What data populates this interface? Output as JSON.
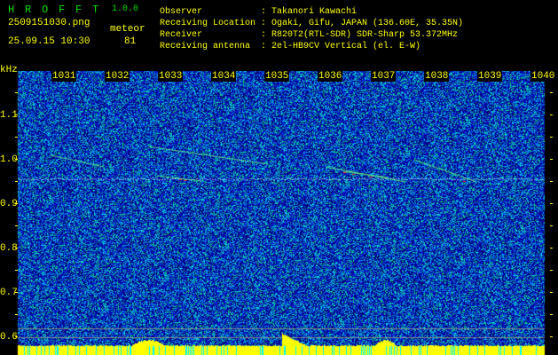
{
  "app": {
    "title": "H R O F F T",
    "version": "1.0.0"
  },
  "file": {
    "name": "2509151030.png",
    "datetime": "25.09.15 10:30"
  },
  "meteor": {
    "label": "meteor",
    "count": "81"
  },
  "info": [
    {
      "label": "Observer",
      "value": ": Takanori Kawachi"
    },
    {
      "label": "Receiving Location",
      "value": ": Ogaki, Gifu, JAPAN (136.60E, 35.35N)"
    },
    {
      "label": "Receiver",
      "value": ": R820T2(RTL-SDR) SDR-Sharp 53.372MHz"
    },
    {
      "label": "Receiving antenna",
      "value": ": 2el-HB9CV Vertical (el. E-W)"
    }
  ],
  "axis": {
    "unit": "kHz",
    "y_labels": [
      "1.1",
      "1.0",
      "0.9",
      "0.8",
      "0.7",
      "0.6"
    ],
    "time_labels": [
      "1031",
      "1032",
      "1033",
      "1034",
      "1035",
      "1036",
      "1037",
      "1038",
      "1039",
      "1040"
    ]
  },
  "colors": {
    "text": "#ffff00",
    "title": "#00e000",
    "noise_low": "#00008b",
    "noise_high": "#00ffff",
    "bar": "#ffff00"
  }
}
